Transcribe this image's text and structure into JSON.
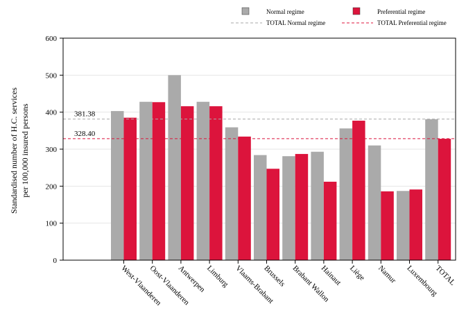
{
  "chart_data": {
    "type": "bar",
    "title": "",
    "xlabel": "",
    "ylabel": [
      "Standardised number of H.C. services",
      "per 100,000 insured persons"
    ],
    "ylim": [
      0,
      600
    ],
    "yticks": [
      0,
      100,
      200,
      300,
      400,
      500,
      600
    ],
    "grid": true,
    "legend_position": "top-right",
    "categories": [
      "West-Vlaanderen",
      "Oost-Vlaanderen",
      "Antwerpen",
      "Limburg",
      "Vlaams-Brabant",
      "Brussels",
      "Brabant Wallon",
      "Hainaut",
      "Liège",
      "Namur",
      "Luxembourg",
      "TOTAL"
    ],
    "series": [
      {
        "name": "Normal regime",
        "color": "#aaaaaa",
        "values": [
          403,
          428,
          500,
          428,
          359,
          284,
          281,
          293,
          356,
          310,
          187,
          381
        ]
      },
      {
        "name": "Preferential regime",
        "color": "#dc143c",
        "values": [
          385,
          427,
          416,
          416,
          334,
          247,
          287,
          212,
          377,
          186,
          191,
          328
        ]
      }
    ],
    "reference_lines": [
      {
        "name": "TOTAL Normal regime",
        "value": 381.38,
        "label": "381.38",
        "color": "#aaaaaa"
      },
      {
        "name": "TOTAL Preferential regime",
        "value": 328.4,
        "label": "328.40",
        "color": "#dc143c"
      }
    ]
  }
}
